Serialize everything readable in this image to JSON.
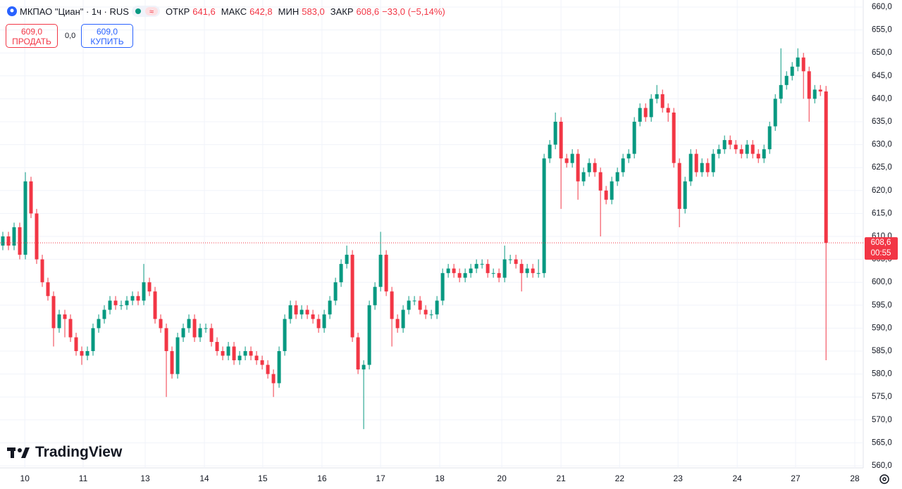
{
  "chart_data": {
    "type": "candlestick",
    "title": "МКПАО \"Циан\" · 1ч · RUS",
    "legend": {
      "open_label": "ОТКР",
      "open": "641,6",
      "high_label": "МАКС",
      "high": "642,8",
      "low_label": "МИН",
      "low": "583,0",
      "close_label": "ЗАКР",
      "close": "608,6",
      "change": "−33,0 (−5,14%)"
    },
    "trade": {
      "sell_price": "609,0",
      "sell_label": "ПРОДАТЬ",
      "spread": "0,0",
      "buy_price": "609,0",
      "buy_label": "КУПИТЬ"
    },
    "brand": "TradingView",
    "up_color": "#089981",
    "down_color": "#f23645",
    "last_price": {
      "value": 608.6,
      "label": "608,6"
    },
    "countdown": "00:55",
    "open": [
      608,
      610,
      608,
      612,
      606,
      622,
      615,
      605,
      600,
      597,
      590,
      593,
      592,
      588,
      585,
      584,
      585,
      590,
      592,
      594,
      596,
      595,
      595,
      596,
      597,
      596,
      600,
      598,
      592,
      590,
      585,
      580,
      588,
      590,
      592,
      588,
      590,
      590,
      587,
      585,
      584,
      586,
      583,
      584,
      585,
      584,
      583,
      582,
      580,
      578,
      585,
      592,
      595,
      593,
      594,
      593,
      592,
      590,
      593,
      596,
      600,
      604,
      606,
      588,
      581,
      582,
      595,
      599,
      606,
      598,
      592,
      590,
      594,
      596,
      596,
      594,
      593,
      593,
      596,
      602,
      603,
      602,
      601,
      602,
      603,
      604,
      604,
      602,
      602,
      601,
      605,
      605,
      604,
      602,
      603,
      602,
      602,
      627,
      630,
      635,
      627,
      626,
      628,
      622,
      624,
      626,
      624,
      620,
      618,
      622,
      624,
      627,
      628,
      635,
      638,
      636,
      640,
      641,
      638,
      637,
      626,
      616,
      622,
      628,
      624,
      626,
      624,
      628,
      629,
      631,
      630,
      629,
      628,
      630,
      628,
      627,
      629,
      634,
      640,
      643,
      645,
      647,
      649,
      646,
      640,
      642,
      641.6
    ],
    "high": [
      611,
      611,
      613,
      613,
      624,
      623,
      616,
      606,
      601,
      598,
      594,
      594,
      593,
      589,
      586,
      586,
      591,
      593,
      595,
      597,
      597,
      596,
      597,
      598,
      598,
      604,
      601,
      599,
      593,
      591,
      586,
      589,
      591,
      593,
      593,
      591,
      591,
      591,
      588,
      586,
      587,
      587,
      585,
      586,
      586,
      585,
      584,
      583,
      581,
      586,
      593,
      596,
      596,
      595,
      595,
      594,
      593,
      594,
      597,
      601,
      605,
      608,
      607,
      589,
      583,
      596,
      600,
      611,
      607,
      599,
      593,
      595,
      597,
      597,
      597,
      595,
      594,
      597,
      603,
      604,
      604,
      603,
      603,
      604,
      605,
      605,
      605,
      603,
      603,
      608,
      606,
      606,
      605,
      604,
      604,
      605,
      628,
      631,
      637,
      636,
      628,
      629,
      629,
      625,
      627,
      627,
      625,
      621,
      623,
      625,
      628,
      629,
      636,
      639,
      639,
      641,
      643,
      642,
      639,
      638,
      627,
      623,
      629,
      629,
      627,
      627,
      629,
      630,
      632,
      632,
      631,
      630,
      631,
      631,
      629,
      630,
      635,
      641,
      651,
      646,
      648,
      651,
      650,
      647,
      643,
      643,
      642.8
    ],
    "low": [
      607,
      607,
      607,
      605,
      605,
      614,
      604,
      599,
      596,
      586,
      589,
      588,
      587,
      584,
      582,
      583,
      584,
      589,
      591,
      593,
      594,
      594,
      594,
      595,
      595,
      595,
      597,
      591,
      589,
      575,
      579,
      579,
      587,
      589,
      587,
      587,
      589,
      586,
      584,
      583,
      583,
      582,
      582,
      583,
      583,
      582,
      581,
      579,
      575,
      577,
      584,
      591,
      592,
      592,
      592,
      591,
      589,
      589,
      592,
      595,
      599,
      603,
      587,
      580,
      568,
      581,
      594,
      598,
      597,
      586,
      589,
      589,
      593,
      595,
      593,
      592,
      592,
      592,
      595,
      601,
      601,
      600,
      600,
      601,
      602,
      603,
      601,
      601,
      600,
      600,
      604,
      603,
      598,
      601,
      601,
      601,
      601,
      626,
      629,
      616,
      625,
      625,
      618,
      621,
      623,
      623,
      610,
      617,
      617,
      621,
      623,
      626,
      627,
      634,
      635,
      635,
      639,
      637,
      635,
      625,
      612,
      615,
      621,
      623,
      623,
      623,
      623,
      627,
      628,
      629,
      628,
      627,
      627,
      627,
      626,
      626,
      628,
      633,
      639,
      642,
      644,
      646,
      640,
      635,
      639,
      640.6,
      583
    ],
    "close": [
      610,
      608,
      612,
      606,
      622,
      615,
      605,
      600,
      597,
      590,
      593,
      592,
      588,
      585,
      584,
      585,
      590,
      592,
      594,
      596,
      595,
      595,
      596,
      597,
      596,
      600,
      598,
      592,
      590,
      585,
      580,
      588,
      590,
      592,
      588,
      590,
      590,
      587,
      585,
      584,
      586,
      583,
      584,
      585,
      584,
      583,
      582,
      580,
      578,
      585,
      592,
      595,
      593,
      594,
      593,
      592,
      590,
      593,
      596,
      600,
      604,
      606,
      588,
      581,
      582,
      595,
      599,
      606,
      598,
      592,
      590,
      594,
      596,
      596,
      594,
      593,
      593,
      596,
      602,
      603,
      602,
      601,
      602,
      603,
      604,
      604,
      602,
      602,
      601,
      605,
      605,
      604,
      602,
      603,
      602,
      602,
      627,
      630,
      635,
      627,
      626,
      628,
      622,
      624,
      626,
      624,
      620,
      618,
      622,
      624,
      627,
      628,
      635,
      638,
      636,
      640,
      641,
      638,
      637,
      626,
      616,
      622,
      628,
      624,
      626,
      624,
      628,
      629,
      631,
      630,
      629,
      628,
      630,
      628,
      627,
      629,
      634,
      640,
      643,
      645,
      647,
      649,
      646,
      640,
      642,
      641.6,
      608.6
    ],
    "xlim": [
      -0.5,
      152.6
    ],
    "xticks": [
      {
        "value": 3.9,
        "label": "10"
      },
      {
        "value": 14.25,
        "label": "11"
      },
      {
        "value": 25.25,
        "label": "13"
      },
      {
        "value": 35.75,
        "label": "14"
      },
      {
        "value": 46.1,
        "label": "15"
      },
      {
        "value": 56.6,
        "label": "16"
      },
      {
        "value": 67,
        "label": "17"
      },
      {
        "value": 77.5,
        "label": "18"
      },
      {
        "value": 88.5,
        "label": "20"
      },
      {
        "value": 99,
        "label": "21"
      },
      {
        "value": 109.4,
        "label": "22"
      },
      {
        "value": 119.75,
        "label": "23"
      },
      {
        "value": 130.25,
        "label": "24"
      },
      {
        "value": 140.6,
        "label": "27"
      },
      {
        "value": 151.1,
        "label": "28"
      }
    ],
    "ylim": [
      560,
      660
    ],
    "yticks": [
      {
        "value": 560,
        "label": "560,0"
      },
      {
        "value": 565,
        "label": "565,0"
      },
      {
        "value": 570,
        "label": "570,0"
      },
      {
        "value": 575,
        "label": "575,0"
      },
      {
        "value": 580,
        "label": "580,0"
      },
      {
        "value": 585,
        "label": "585,0"
      },
      {
        "value": 590,
        "label": "590,0"
      },
      {
        "value": 595,
        "label": "595,0"
      },
      {
        "value": 600,
        "label": "600,0"
      },
      {
        "value": 605,
        "label": "605,0"
      },
      {
        "value": 610,
        "label": "610,0"
      },
      {
        "value": 615,
        "label": "615,0"
      },
      {
        "value": 620,
        "label": "620,0"
      },
      {
        "value": 625,
        "label": "625,0"
      },
      {
        "value": 630,
        "label": "630,0"
      },
      {
        "value": 635,
        "label": "635,0"
      },
      {
        "value": 640,
        "label": "640,0"
      },
      {
        "value": 645,
        "label": "645,0"
      },
      {
        "value": 650,
        "label": "650,0"
      },
      {
        "value": 655,
        "label": "655,0"
      },
      {
        "value": 660,
        "label": "660,0"
      }
    ],
    "grid": true
  }
}
